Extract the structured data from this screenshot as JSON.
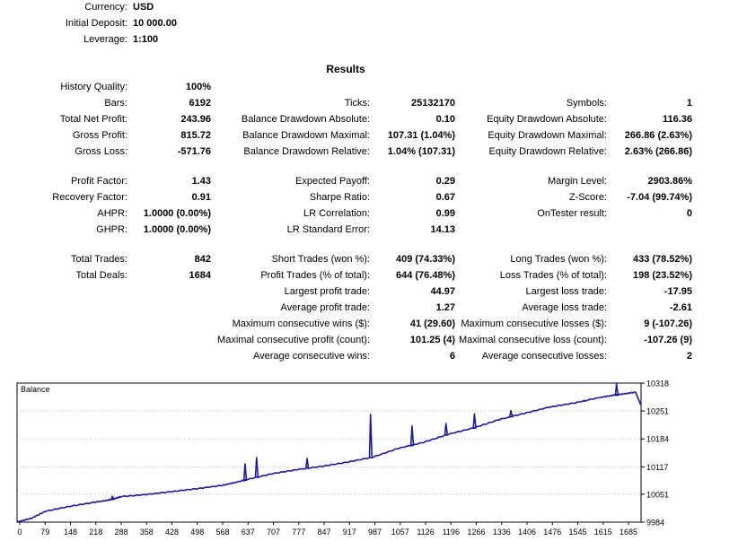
{
  "header": {
    "currency_label": "Currency:",
    "currency": "USD",
    "deposit_label": "Initial Deposit:",
    "deposit": "10 000.00",
    "leverage_label": "Leverage:",
    "leverage": "1:100"
  },
  "results_title": "Results",
  "col1": [
    {
      "label": "History Quality:",
      "value": "100%"
    },
    {
      "label": "Bars:",
      "value": "6192"
    },
    {
      "label": "Total Net Profit:",
      "value": "243.96"
    },
    {
      "label": "Gross Profit:",
      "value": "815.72"
    },
    {
      "label": "Gross Loss:",
      "value": "-571.76"
    },
    {
      "label": "Profit Factor:",
      "value": "1.43"
    },
    {
      "label": "Recovery Factor:",
      "value": "0.91"
    },
    {
      "label": "AHPR:",
      "value": "1.0000 (0.00%)"
    },
    {
      "label": "GHPR:",
      "value": "1.0000 (0.00%)"
    },
    {
      "label": "Total Trades:",
      "value": "842"
    },
    {
      "label": "Total Deals:",
      "value": "1684"
    }
  ],
  "col2": [
    {
      "label": "Ticks:",
      "value": "25132170"
    },
    {
      "label": "Balance Drawdown Absolute:",
      "value": "0.10"
    },
    {
      "label": "Balance Drawdown Maximal:",
      "value": "107.31 (1.04%)"
    },
    {
      "label": "Balance Drawdown Relative:",
      "value": "1.04% (107.31)"
    },
    {
      "label": "Expected Payoff:",
      "value": "0.29"
    },
    {
      "label": "Sharpe Ratio:",
      "value": "0.67"
    },
    {
      "label": "LR Correlation:",
      "value": "0.99"
    },
    {
      "label": "LR Standard Error:",
      "value": "14.13"
    },
    {
      "label": "Short Trades (won %):",
      "value": "409 (74.33%)"
    },
    {
      "label": "Profit Trades (% of total):",
      "value": "644 (76.48%)"
    },
    {
      "label": "Largest profit trade:",
      "value": "44.97"
    },
    {
      "label": "Average profit trade:",
      "value": "1.27"
    },
    {
      "label": "Maximum consecutive wins ($):",
      "value": "41 (29.60)"
    },
    {
      "label": "Maximal consecutive profit (count):",
      "value": "101.25 (4)"
    },
    {
      "label": "Average consecutive wins:",
      "value": "6"
    }
  ],
  "col3": [
    {
      "label": "Symbols:",
      "value": "1"
    },
    {
      "label": "Equity Drawdown Absolute:",
      "value": "116.36"
    },
    {
      "label": "Equity Drawdown Maximal:",
      "value": "266.86 (2.63%)"
    },
    {
      "label": "Equity Drawdown Relative:",
      "value": "2.63% (266.86)"
    },
    {
      "label": "Margin Level:",
      "value": "2903.86%"
    },
    {
      "label": "Z-Score:",
      "value": "-7.04 (99.74%)"
    },
    {
      "label": "OnTester result:",
      "value": "0"
    },
    {
      "label": "Long Trades (won %):",
      "value": "433 (78.52%)"
    },
    {
      "label": "Loss Trades (% of total):",
      "value": "198 (23.52%)"
    },
    {
      "label": "Largest loss trade:",
      "value": "-17.95"
    },
    {
      "label": "Average loss trade:",
      "value": "-2.61"
    },
    {
      "label": "Maximum consecutive losses ($):",
      "value": "9 (-107.26)"
    },
    {
      "label": "Maximal consecutive loss (count):",
      "value": "-107.26 (9)"
    },
    {
      "label": "Average consecutive losses:",
      "value": "2"
    }
  ],
  "chart_data": {
    "type": "line",
    "legend": "Balance",
    "line_color": "#1a1aa6",
    "x_ticks": [
      "0",
      "79",
      "148",
      "218",
      "288",
      "358",
      "428",
      "498",
      "568",
      "637",
      "707",
      "777",
      "847",
      "917",
      "987",
      "1057",
      "1126",
      "1196",
      "1266",
      "1336",
      "1406",
      "1476",
      "1545",
      "1615",
      "1685"
    ],
    "y_ticks": [
      "10318",
      "10251",
      "10184",
      "10117",
      "10051",
      "9984"
    ],
    "ylim": [
      9984,
      10318
    ],
    "xlim": [
      0,
      1730
    ],
    "series": [
      {
        "x": [
          0,
          40,
          79,
          148,
          218,
          250,
          270,
          288,
          358,
          428,
          498,
          568,
          600,
          637,
          707,
          777,
          847,
          917,
          987,
          1057,
          1126,
          1196,
          1266,
          1336,
          1406,
          1476,
          1545,
          1615,
          1650,
          1685,
          1715,
          1726,
          1730
        ],
        "y": [
          9984,
          9993,
          10010,
          10022,
          10032,
          10036,
          10040,
          10045,
          10050,
          10057,
          10064,
          10072,
          10078,
          10086,
          10100,
          10110,
          10118,
          10128,
          10140,
          10161,
          10175,
          10195,
          10210,
          10230,
          10245,
          10260,
          10270,
          10283,
          10288,
          10292,
          10296,
          10272,
          10265
        ]
      }
    ],
    "spikes": [
      {
        "x": 264,
        "y": 10046
      },
      {
        "x": 632,
        "y": 10124
      },
      {
        "x": 664,
        "y": 10139
      },
      {
        "x": 804,
        "y": 10137
      },
      {
        "x": 980,
        "y": 10243
      },
      {
        "x": 1095,
        "y": 10215
      },
      {
        "x": 1189,
        "y": 10221
      },
      {
        "x": 1268,
        "y": 10244
      },
      {
        "x": 1369,
        "y": 10252
      },
      {
        "x": 1573,
        "y": 10275
      },
      {
        "x": 1662,
        "y": 10317
      }
    ]
  }
}
